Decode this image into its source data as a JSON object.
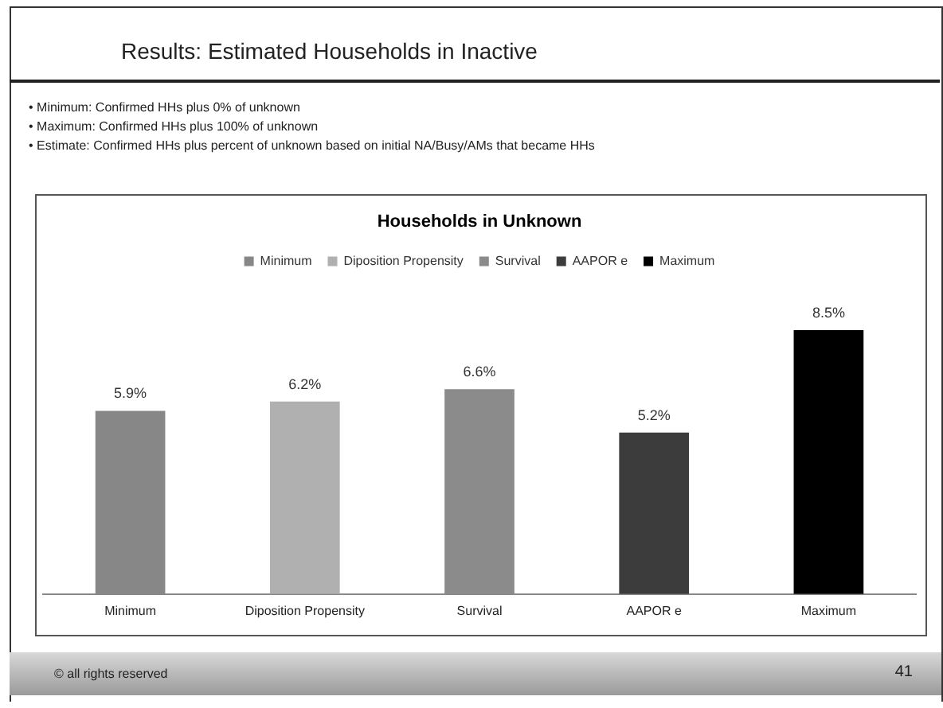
{
  "chart_data": {
    "type": "bar",
    "title": "Households in Unknown",
    "subtitle": "Results: Estimated Households in Inactive",
    "annotations": [
      "• Minimum: Confirmed HHs plus 0% of unknown",
      "• Maximum: Confirmed HHs plus 100% of unknown",
      "• Estimate: Confirmed HHs plus percent of unknown based on initial NA/Busy/AMs that became HHs",
      "© all rights reserved",
      "41"
    ],
    "categories": [
      "Minimum",
      "Diposition Propensity",
      "Survival",
      "AAPOR e",
      "Maximum"
    ],
    "series": [
      {
        "name": "Minimum",
        "color": "#878787",
        "values": [
          5.9,
          null,
          null,
          null,
          null
        ],
        "value_labels": [
          "5.9%",
          null,
          null,
          null,
          null
        ]
      },
      {
        "name": "Diposition Propensity",
        "color": "#b0b0b0",
        "values": [
          null,
          6.2,
          null,
          null,
          null
        ],
        "value_labels": [
          null,
          "6.2%",
          null,
          null,
          null
        ]
      },
      {
        "name": "Survival",
        "color": "#8b8b8b",
        "values": [
          null,
          null,
          6.6,
          null,
          null
        ],
        "value_labels": [
          null,
          null,
          "6.6%",
          null,
          null
        ]
      },
      {
        "name": "AAPOR e",
        "color": "#3c3c3c",
        "values": [
          null,
          null,
          null,
          5.2,
          null
        ],
        "value_labels": [
          null,
          null,
          null,
          "5.2%",
          null
        ]
      },
      {
        "name": "Maximum",
        "color": "#000000",
        "values": [
          null,
          null,
          null,
          null,
          8.5
        ],
        "value_labels": [
          null,
          null,
          null,
          null,
          "8.5%"
        ]
      }
    ],
    "legend": "top",
    "grid": false
  }
}
